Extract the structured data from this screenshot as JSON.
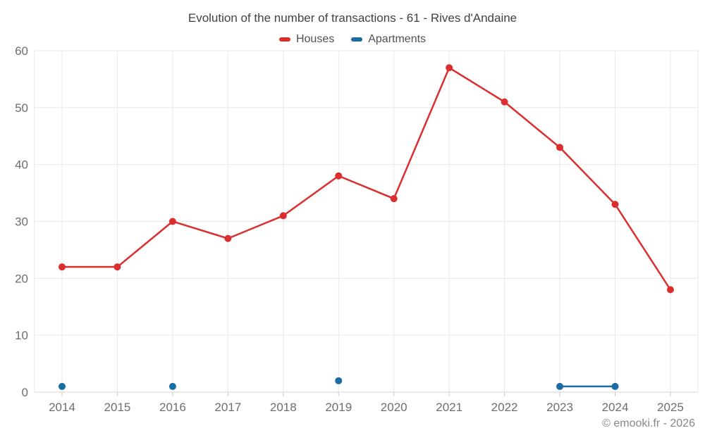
{
  "page": {
    "footer": "© emooki.fr - 2026"
  },
  "chart_data": {
    "type": "line",
    "title": "Evolution of the number of transactions - 61 - Rives d'Andaine",
    "categories": [
      "2014",
      "2015",
      "2016",
      "2017",
      "2018",
      "2019",
      "2020",
      "2021",
      "2022",
      "2023",
      "2024",
      "2025"
    ],
    "series": [
      {
        "name": "Houses",
        "color": "#db2f2f",
        "values": [
          22,
          22,
          30,
          27,
          31,
          38,
          34,
          57,
          51,
          43,
          33,
          18
        ]
      },
      {
        "name": "Apartments",
        "color": "#1b6ca3",
        "values": [
          1,
          null,
          1,
          null,
          null,
          2,
          null,
          null,
          null,
          1,
          1,
          null
        ]
      }
    ],
    "xlabel": "",
    "ylabel": "",
    "ylim": [
      0,
      60
    ],
    "yticks": [
      0,
      10,
      20,
      30,
      40,
      50,
      60
    ],
    "grid": true,
    "legend_position": "top",
    "colors": {
      "grid_line": "#e9e9e9",
      "baseline": "#d6d6d6",
      "tick_mark": "#c9c9c9",
      "axis_text": "#6e6e6e",
      "title_text": "#424242",
      "legend_text": "#515151",
      "footer_text": "#878787"
    }
  }
}
